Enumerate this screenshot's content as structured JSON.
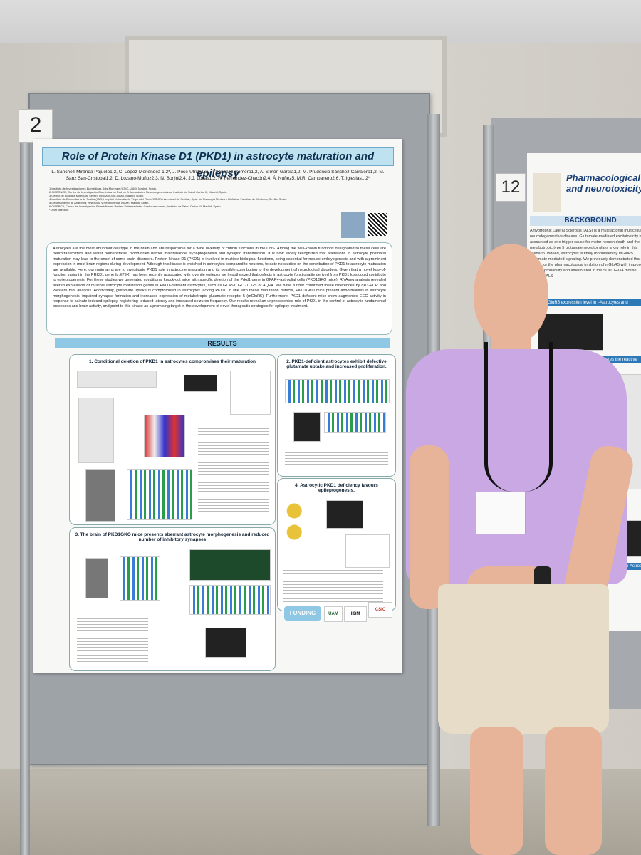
{
  "scene": {
    "description_colors": {
      "wall": "#d3d0ca",
      "board": "#9ea3a8",
      "shirt": "#c9a8e3",
      "shorts": "#e6dcc7"
    }
  },
  "board_numbers": {
    "left": "2",
    "right": "12"
  },
  "poster": {
    "title": "Role of Protein Kinase D1 (PKD1) in astrocyte maturation and epilepsy",
    "authors_line1": "L. Sánchez-Miranda Pajuelo1,2, C. López-Menéndez 1,2*, J. Pose-Utrilla1,2, J. Sánchez Romero1,2, A. Simón García1,2, M. Prudencio Sánchez-Carralero1,2, M.",
    "authors_line2": "Sanz San-Cristobal1,2, D. Lozano-Muñoz2,3, N. Borjini2,4, J.J. Lucas1,2, R. Fernández-Chacón2,4, Á. Núñez5, M.R. Campanero2,6, T. Iglesias1,2*",
    "affiliations": [
      "1 Instituto de Investigaciones Biomédicas Sols-Morreale (CSIC-UAM), Madrid, Spain.",
      "2 CIBERNED, Centro de Investigación Biomédica en Red en Enfermedades Neurodegenerativas, Instituto de Salud Carlos III, Madrid, Spain.",
      "3 Centro de Biología Molecular Severo Ochoa (CSIC-UAM), Madrid, Spain.",
      "4 Instituto de Biomedicina de Sevilla (IBiS, Hospital Universitario Virgen del Rocío/CSIC/Universidad de Sevilla), Dpto. de Fisiología Médica y Biofísica, Facultad de Medicina, Sevilla, Spain.",
      "5 Departamento de Anatomía, Histología y Neurociencia (UAM), Madrid, Spain.",
      "6 CIBERCV, Centro de Investigación Biomédica en Red en Enfermedades Cardiovasculares, Instituto de Salud Carlos III, Madrid, Spain.",
      "* Joint direction"
    ],
    "abstract": "Astrocytes are the most abundant cell type in the brain and are responsible for a wide diversity of critical functions in the CNS. Among the well-known functions designated to these cells are neurotransmitters and water homeostasis, blood-brain barrier maintenance, synaptogenesis and synaptic transmission. It is now widely recognized that alterations in astrocyte postnatal maturation may lead to the onset of some brain disorders. Protein kinase D1 (PKD1) is involved in multiple biological functions, being essential for mouse embryogenesis and with a prominent expression in most brain regions during development. Although this kinase is enriched in astrocytes compared to neurons, to date no studies on the contribution of PKD1 to astrocyte maturation are available. Here, our main aims are to investigate PKD1 role in astrocyte maturation and its possible contribution to the development of neurological disorders. Given that a novel loss-of-function variant in the PRKD1 gene (p.E79X) has been recently associated with juvenile epilepsy we hypothesized that defects in astrocyte functionality derived from PKD1 loss could contribute to epileptogenesis. For these studies we generated conditional knock-out mice with specific deletion of the Prkd1 gene in GFAP+-astroglial cells (PKD1GKO mice). RNAseq analysis revealed altered expression of multiple astrocyte maturation genes in PKD1-deficient astrocytes, such as GLAST, GLT-1, GS or AQP4. We have further confirmed these differences by qRT-PCR and Western Blot analysis. Additionally, glutamate uptake is compromised in astrocytes lacking PKD1. In line with these maturation defects, PKD1GKO mice present abnormalities in astrocyte morphogenesis, impaired synapse formation and increased expression of metabotropic glutamate receptor-5 (mGluR5). Furthermore, PKD1 deficient mice show augmented EEG activity in response to kainate-induced epilepsy, registering reduced latency and increased seizures frequency. Our results reveal an unprecedented role of PKD1 in the control of astrocytic fundamental processes and brain activity, and point to this kinase as a promising target in the development of novel therapeutic strategies for epilepsy treatment.",
    "results_label": "RESULTS",
    "panel1_title": "1. Conditional deletion of PKD1 in astrocytes compromises their maturation",
    "panel2_title": "2. PKD1-deficient astrocytes exhibit defective glutamate uptake and increased proliferation.",
    "panel3_title": "3. The brain of PKD1GKO mice presents aberrant astrocyte morphogenesis and reduced number of inhibitory synapses",
    "panel4_title": "4. Astrocytic PKD1 deficiency favours epileptogenesis.",
    "funding_label": "FUNDING",
    "logo_csic": "CSIC",
    "logo_uam": "UAM",
    "logo_iib": "IIBM"
  },
  "poster_right": {
    "title_line1": "Pharmacological",
    "title_line2": "and neurotoxicity",
    "background_heading": "BACKGROUND",
    "background_text": "Amyotrophic Lateral Sclerosis (ALS) is a multifactorial multicellular neurodegenerative disease. Glutamate-mediated excitotoxicity is accounted as one trigger cause for motor neuron death and the metabotropic type 5 glutamate receptor plays a key role in this scenario. Indeed, astrocytes is finely modulated by mGluR5 glutamate-mediated signaling. We previously demonstrated that the genetic or the pharmacological inhibition of mGluR5 with improved survival probability and ameliorated in the SOD1G93A mouse model of ALS",
    "band1": "mGluR5 expression level in i-Astrocytes and",
    "band2": "treatment ameliorates the reactive",
    "band3": "pro-inflammatory i-Astrocytes"
  }
}
